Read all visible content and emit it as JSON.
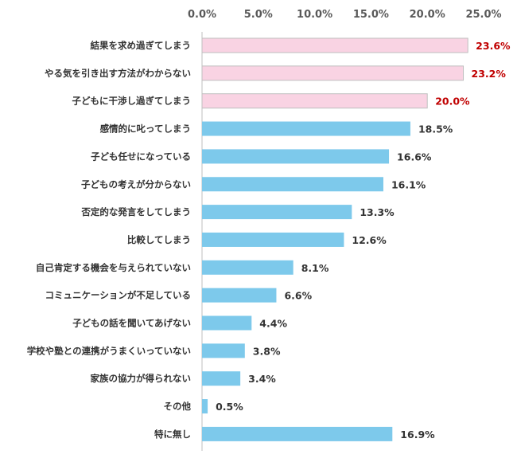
{
  "chart_data": {
    "type": "bar",
    "orientation": "horizontal",
    "categories": [
      "結果を求め過ぎてしまう",
      "やる気を引き出す方法がわからない",
      "子どもに干渉し過ぎてしまう",
      "感情的に叱ってしまう",
      "子ども任せになっている",
      "子どもの考えが分からない",
      "否定的な発言をしてしまう",
      "比較してしまう",
      "自己肯定する機会を与えられていない",
      "コミュニケーションが不足している",
      "子どもの話を聞いてあげない",
      "学校や塾との連携がうまくいっていない",
      "家族の協力が得られない",
      "その他",
      "特に無し"
    ],
    "values": [
      23.6,
      23.2,
      20.0,
      18.5,
      16.6,
      16.1,
      13.3,
      12.6,
      8.1,
      6.6,
      4.4,
      3.8,
      3.4,
      0.5,
      16.9
    ],
    "value_labels": [
      "23.6%",
      "23.2%",
      "20.0%",
      "18.5%",
      "16.6%",
      "16.1%",
      "13.3%",
      "12.6%",
      "8.1%",
      "6.6%",
      "4.4%",
      "3.8%",
      "3.4%",
      "0.5%",
      "16.9%"
    ],
    "highlighted_top": 3,
    "xlim": [
      0,
      25
    ],
    "x_ticks": [
      0,
      5,
      10,
      15,
      20,
      25
    ],
    "x_tick_labels": [
      "0.0%",
      "5.0%",
      "10.0%",
      "15.0%",
      "20.0%",
      "25.0%"
    ],
    "axis_position": "top",
    "grid": false,
    "colors": {
      "highlight_bar": "#F9D3E3",
      "normal_bar": "#7DC9EB",
      "highlight_label": "#C00000",
      "normal_label": "#333333",
      "bar_edge": "#BFBFBF"
    }
  }
}
